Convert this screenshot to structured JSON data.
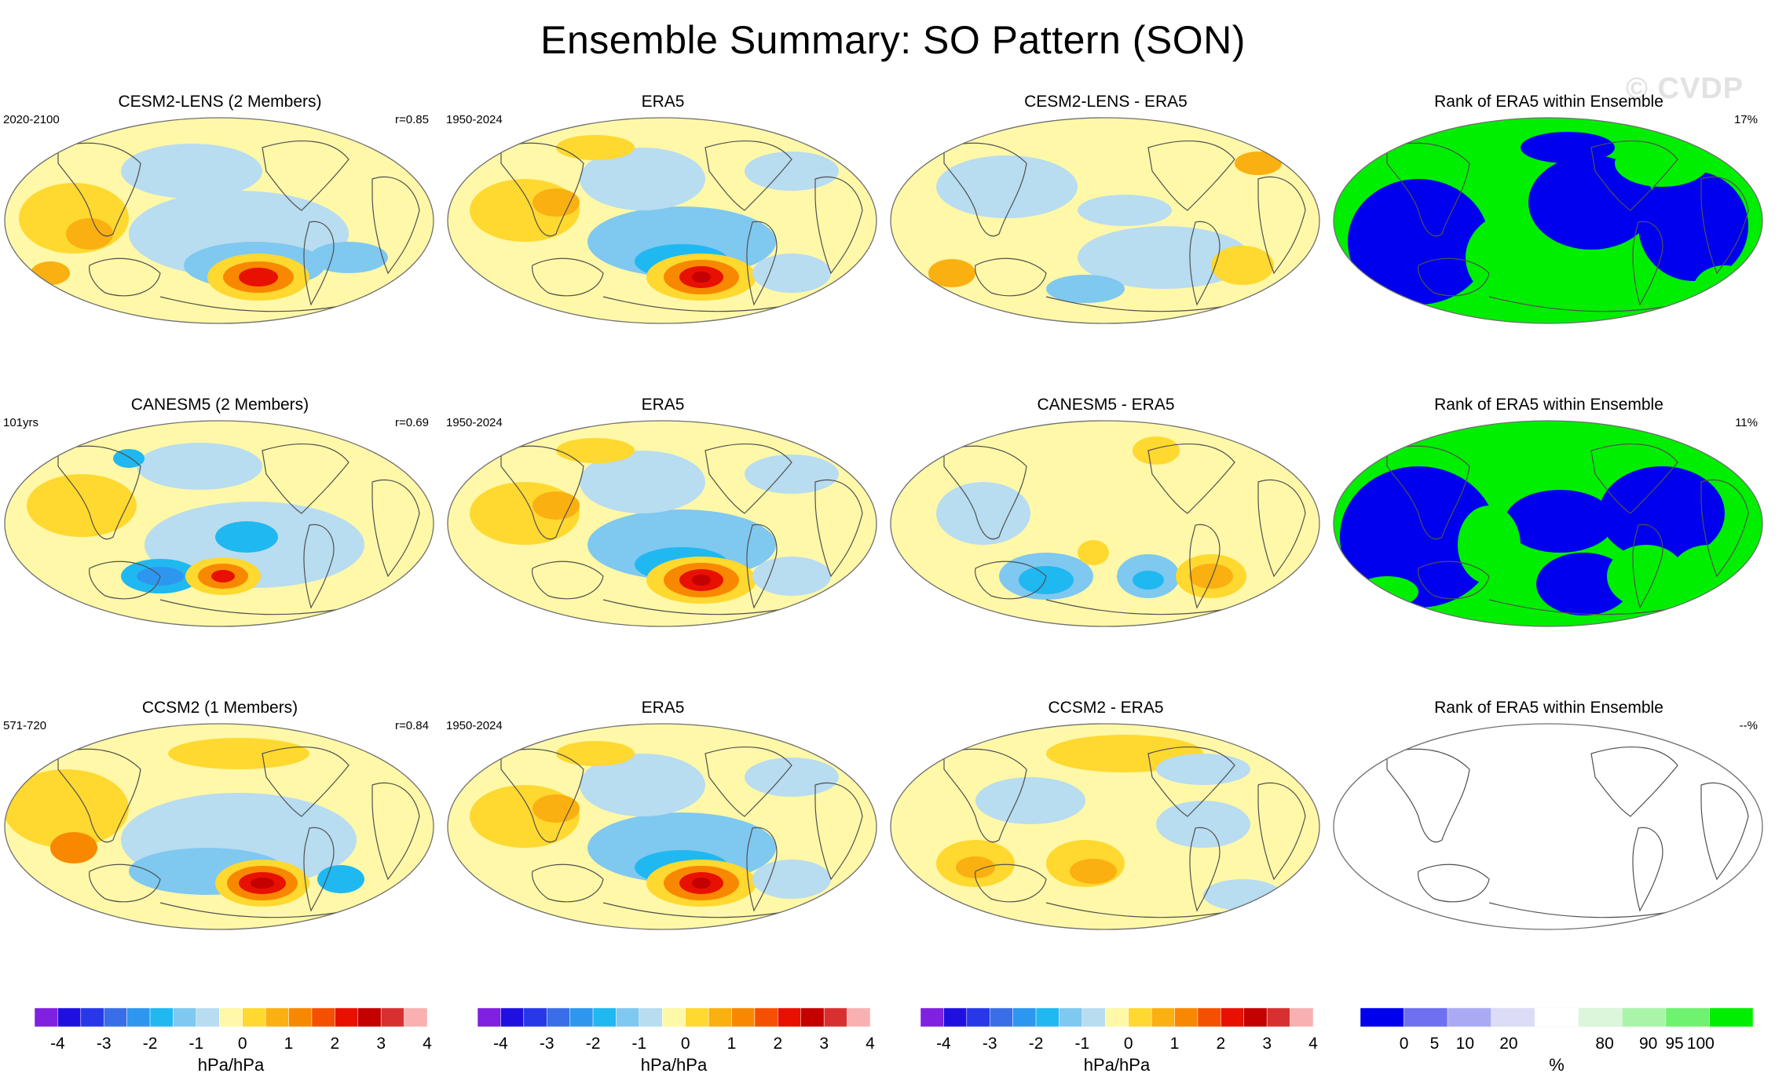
{
  "title": "Ensemble Summary: SO Pattern (SON)",
  "watermark": "© CVDP",
  "rows": [
    {
      "model": {
        "title": "CESM2-LENS (2 Members)",
        "left": "2020-2100",
        "right": "r=0.85"
      },
      "obs": {
        "title": "ERA5",
        "left": "1950-2024"
      },
      "diff": {
        "title": "CESM2-LENS - ERA5"
      },
      "rank": {
        "title": "Rank of ERA5 within Ensemble",
        "right": "17%"
      }
    },
    {
      "model": {
        "title": "CANESM5 (2 Members)",
        "left": "101yrs",
        "right": "r=0.69"
      },
      "obs": {
        "title": "ERA5",
        "left": "1950-2024"
      },
      "diff": {
        "title": "CANESM5 - ERA5"
      },
      "rank": {
        "title": "Rank of ERA5 within Ensemble",
        "right": "11%"
      }
    },
    {
      "model": {
        "title": "CCSM2 (1 Members)",
        "left": "571-720",
        "right": "r=0.84"
      },
      "obs": {
        "title": "ERA5",
        "left": "1950-2024"
      },
      "diff": {
        "title": "CCSM2 - ERA5"
      },
      "rank": {
        "title": "Rank of ERA5 within Ensemble",
        "right": "--%"
      }
    }
  ],
  "colorbar": {
    "colors": [
      "#8020e0",
      "#2010e0",
      "#2838e8",
      "#3a6ee8",
      "#2d97f0",
      "#20b8f0",
      "#7fc8f0",
      "#b8dcf0",
      "#fff8a8",
      "#ffd830",
      "#fab010",
      "#f88800",
      "#f55000",
      "#e81000",
      "#c40000",
      "#d83030",
      "#f8b0b0"
    ],
    "labels": [
      "-4",
      "-3",
      "-2",
      "-1",
      "0",
      "1",
      "2",
      "3",
      "4"
    ],
    "unit": "hPa/hPa"
  },
  "rank_colorbar": {
    "colors": [
      "#0000ee",
      "#6f6ff2",
      "#aaaaf4",
      "#dcdcf6",
      "#ffffff",
      "#dcf6dc",
      "#aaf4aa",
      "#6ff26f",
      "#00ee00"
    ],
    "labels": [
      "0",
      "5",
      "10",
      "20",
      "80",
      "90",
      "95",
      "100"
    ],
    "unit": "%"
  },
  "palette": {
    "yellow": "#fff8a8",
    "lightblue": "#b8dcf0",
    "blue": "#7fc8f0",
    "green": "#00ee00",
    "rankblue": "#0000ee"
  }
}
